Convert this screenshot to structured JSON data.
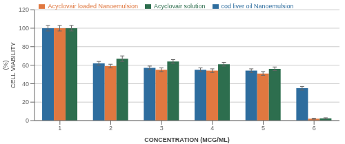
{
  "chart_data": {
    "type": "bar",
    "categories": [
      1,
      2,
      3,
      4,
      5,
      6
    ],
    "series": [
      {
        "name": "cod liver oil Nanoemulsion",
        "color": "#2e6d9e",
        "values": [
          100,
          62,
          57,
          55,
          54,
          35
        ],
        "errors": [
          3,
          2,
          2,
          2,
          2,
          2
        ]
      },
      {
        "name": "Acyclovair loaded Nanoemulsion",
        "color": "#e07840",
        "values": [
          100,
          59,
          55,
          54,
          51,
          2
        ],
        "errors": [
          3,
          2,
          2,
          2,
          2,
          0.5
        ]
      },
      {
        "name": "Acyclovair solution",
        "color": "#2d6e4e",
        "values": [
          100,
          67,
          64,
          61,
          56,
          2.5
        ],
        "errors": [
          3,
          3,
          2,
          2,
          2,
          0.5
        ]
      }
    ],
    "xlabel": "CONCENTRATION (MCG/ML)",
    "ylabel": "(%)\nCELL VIABILITY",
    "ylim": [
      0,
      120
    ],
    "yticks": [
      0,
      20,
      40,
      60,
      80,
      100,
      120
    ],
    "grid": true,
    "legend": "top"
  }
}
